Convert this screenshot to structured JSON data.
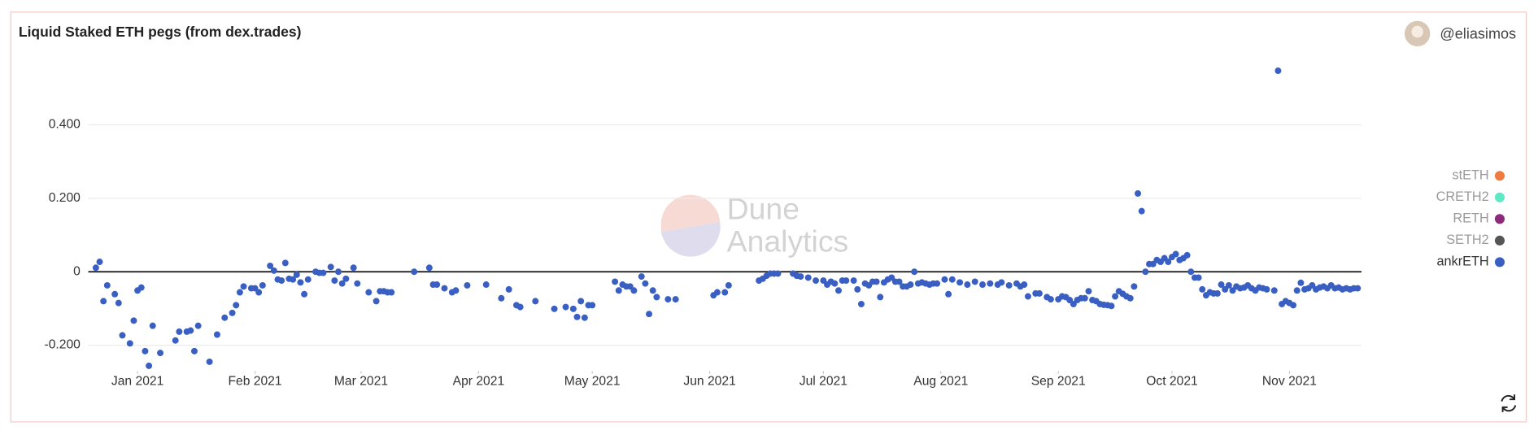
{
  "chart_data": {
    "type": "scatter",
    "title": "Liquid Staked ETH pegs (from dex.trades)",
    "user": "@eliasimos",
    "watermark": [
      "Dune",
      "Analytics"
    ],
    "xlim": [
      "2020-12-19",
      "2021-11-20"
    ],
    "ylim": [
      -0.27,
      0.6
    ],
    "xticks": [
      {
        "value": "2021-01-01",
        "label": "Jan 2021"
      },
      {
        "value": "2021-02-01",
        "label": "Feb 2021"
      },
      {
        "value": "2021-03-01",
        "label": "Mar 2021"
      },
      {
        "value": "2021-04-01",
        "label": "Apr 2021"
      },
      {
        "value": "2021-05-01",
        "label": "May 2021"
      },
      {
        "value": "2021-06-01",
        "label": "Jun 2021"
      },
      {
        "value": "2021-07-01",
        "label": "Jul 2021"
      },
      {
        "value": "2021-08-01",
        "label": "Aug 2021"
      },
      {
        "value": "2021-09-01",
        "label": "Sep 2021"
      },
      {
        "value": "2021-10-01",
        "label": "Oct 2021"
      },
      {
        "value": "2021-11-01",
        "label": "Nov 2021"
      }
    ],
    "yticks": [
      {
        "value": -0.2,
        "label": "-0.200"
      },
      0,
      {
        "value": 0.2,
        "label": "0.200"
      },
      {
        "value": 0.4,
        "label": "0.400"
      }
    ],
    "grid": true,
    "legend_position": "right",
    "hidden_series": [
      {
        "name": "stETH",
        "color": "#f07b3f"
      },
      {
        "name": "CRETH2",
        "color": "#5ee8c5"
      },
      {
        "name": "RETH",
        "color": "#8e2a7a"
      },
      {
        "name": "SETH2",
        "color": "#555555"
      }
    ],
    "x": [
      "2020-12-21",
      "2020-12-22",
      "2020-12-23",
      "2020-12-24",
      "2020-12-26",
      "2020-12-27",
      "2020-12-28",
      "2020-12-30",
      "2020-12-31",
      "2021-01-01",
      "2021-01-02",
      "2021-01-03",
      "2021-01-04",
      "2021-01-05",
      "2021-01-07",
      "2021-01-11",
      "2021-01-12",
      "2021-01-14",
      "2021-01-15",
      "2021-01-16",
      "2021-01-17",
      "2021-01-20",
      "2021-01-22",
      "2021-01-24",
      "2021-01-26",
      "2021-01-27",
      "2021-01-28",
      "2021-01-29",
      "2021-01-31",
      "2021-02-01",
      "2021-02-02",
      "2021-02-03",
      "2021-02-05",
      "2021-02-06",
      "2021-02-07",
      "2021-02-08",
      "2021-02-09",
      "2021-02-10",
      "2021-02-11",
      "2021-02-12",
      "2021-02-13",
      "2021-02-14",
      "2021-02-15",
      "2021-02-17",
      "2021-02-18",
      "2021-02-19",
      "2021-02-21",
      "2021-02-22",
      "2021-02-23",
      "2021-02-24",
      "2021-02-25",
      "2021-02-27",
      "2021-02-28",
      "2021-03-03",
      "2021-03-05",
      "2021-03-06",
      "2021-03-07",
      "2021-03-08",
      "2021-03-09",
      "2021-03-15",
      "2021-03-19",
      "2021-03-20",
      "2021-03-21",
      "2021-03-23",
      "2021-03-25",
      "2021-03-26",
      "2021-03-29",
      "2021-04-03",
      "2021-04-07",
      "2021-04-09",
      "2021-04-11",
      "2021-04-12",
      "2021-04-16",
      "2021-04-21",
      "2021-04-24",
      "2021-04-26",
      "2021-04-27",
      "2021-04-28",
      "2021-04-29",
      "2021-04-30",
      "2021-05-01",
      "2021-05-07",
      "2021-05-08",
      "2021-05-09",
      "2021-05-10",
      "2021-05-11",
      "2021-05-12",
      "2021-05-14",
      "2021-05-15",
      "2021-05-16",
      "2021-05-17",
      "2021-05-18",
      "2021-05-21",
      "2021-05-23",
      "2021-06-02",
      "2021-06-03",
      "2021-06-05",
      "2021-06-06",
      "2021-06-14",
      "2021-06-15",
      "2021-06-16",
      "2021-06-17",
      "2021-06-18",
      "2021-06-19",
      "2021-06-23",
      "2021-06-24",
      "2021-06-25",
      "2021-06-27",
      "2021-06-29",
      "2021-07-01",
      "2021-07-02",
      "2021-07-03",
      "2021-07-04",
      "2021-07-05",
      "2021-07-06",
      "2021-07-07",
      "2021-07-09",
      "2021-07-10",
      "2021-07-11",
      "2021-07-12",
      "2021-07-13",
      "2021-07-14",
      "2021-07-15",
      "2021-07-16",
      "2021-07-17",
      "2021-07-18",
      "2021-07-19",
      "2021-07-20",
      "2021-07-21",
      "2021-07-22",
      "2021-07-23",
      "2021-07-24",
      "2021-07-25",
      "2021-07-26",
      "2021-07-27",
      "2021-07-28",
      "2021-07-29",
      "2021-07-30",
      "2021-07-31",
      "2021-08-02",
      "2021-08-03",
      "2021-08-04",
      "2021-08-06",
      "2021-08-08",
      "2021-08-10",
      "2021-08-12",
      "2021-08-14",
      "2021-08-16",
      "2021-08-17",
      "2021-08-19",
      "2021-08-21",
      "2021-08-22",
      "2021-08-23",
      "2021-08-24",
      "2021-08-26",
      "2021-08-27",
      "2021-08-29",
      "2021-08-30",
      "2021-09-01",
      "2021-09-02",
      "2021-09-03",
      "2021-09-04",
      "2021-09-05",
      "2021-09-06",
      "2021-09-07",
      "2021-09-08",
      "2021-09-09",
      "2021-09-10",
      "2021-09-11",
      "2021-09-12",
      "2021-09-13",
      "2021-09-14",
      "2021-09-15",
      "2021-09-16",
      "2021-09-17",
      "2021-09-18",
      "2021-09-19",
      "2021-09-20",
      "2021-09-21",
      "2021-09-22",
      "2021-09-23",
      "2021-09-24",
      "2021-09-25",
      "2021-09-26",
      "2021-09-27",
      "2021-09-28",
      "2021-09-29",
      "2021-09-30",
      "2021-10-01",
      "2021-10-02",
      "2021-10-03",
      "2021-10-04",
      "2021-10-05",
      "2021-10-06",
      "2021-10-07",
      "2021-10-08",
      "2021-10-09",
      "2021-10-10",
      "2021-10-11",
      "2021-10-12",
      "2021-10-13",
      "2021-10-14",
      "2021-10-15",
      "2021-10-16",
      "2021-10-17",
      "2021-10-18",
      "2021-10-19",
      "2021-10-20",
      "2021-10-21",
      "2021-10-22",
      "2021-10-23",
      "2021-10-24",
      "2021-10-25",
      "2021-10-26",
      "2021-10-28",
      "2021-10-29",
      "2021-10-30",
      "2021-10-31",
      "2021-11-01",
      "2021-11-02",
      "2021-11-03",
      "2021-11-04",
      "2021-11-05",
      "2021-11-06",
      "2021-11-07",
      "2021-11-08",
      "2021-11-09",
      "2021-11-10",
      "2021-11-11",
      "2021-11-12",
      "2021-11-13",
      "2021-11-14",
      "2021-11-15",
      "2021-11-16",
      "2021-11-17",
      "2021-11-18",
      "2021-11-19"
    ],
    "series": [
      {
        "name": "ankrETH",
        "color": "#3a5fc2",
        "values": [
          0.011,
          0.027,
          -0.08,
          -0.037,
          -0.061,
          -0.085,
          -0.173,
          -0.195,
          -0.133,
          -0.051,
          -0.043,
          -0.216,
          -0.256,
          -0.147,
          -0.221,
          -0.187,
          -0.163,
          -0.163,
          -0.16,
          -0.216,
          -0.147,
          -0.245,
          -0.171,
          -0.125,
          -0.112,
          -0.091,
          -0.056,
          -0.04,
          -0.045,
          -0.045,
          -0.056,
          -0.037,
          0.016,
          0.003,
          -0.021,
          -0.024,
          0.024,
          -0.019,
          -0.021,
          -0.008,
          -0.029,
          -0.061,
          -0.021,
          0.0,
          -0.003,
          -0.003,
          0.013,
          -0.024,
          0.0,
          -0.032,
          -0.019,
          0.011,
          -0.032,
          -0.056,
          -0.08,
          -0.053,
          -0.053,
          -0.056,
          -0.056,
          0.0,
          0.011,
          -0.035,
          -0.035,
          -0.045,
          -0.056,
          -0.051,
          -0.037,
          -0.035,
          -0.072,
          -0.048,
          -0.091,
          -0.096,
          -0.08,
          -0.101,
          -0.096,
          -0.101,
          -0.123,
          -0.08,
          -0.125,
          -0.091,
          -0.091,
          -0.027,
          -0.051,
          -0.035,
          -0.04,
          -0.04,
          -0.051,
          -0.013,
          -0.032,
          -0.115,
          -0.051,
          -0.069,
          -0.075,
          -0.075,
          -0.064,
          -0.056,
          -0.056,
          -0.037,
          -0.024,
          -0.019,
          -0.011,
          -0.005,
          -0.005,
          -0.005,
          -0.005,
          -0.011,
          -0.013,
          -0.016,
          -0.024,
          -0.024,
          -0.035,
          -0.027,
          -0.032,
          -0.051,
          -0.024,
          -0.024,
          -0.024,
          -0.048,
          -0.088,
          -0.032,
          -0.037,
          -0.027,
          -0.027,
          -0.069,
          -0.029,
          -0.021,
          -0.016,
          -0.027,
          -0.027,
          -0.04,
          -0.04,
          -0.035,
          0.0,
          -0.032,
          -0.029,
          -0.032,
          -0.035,
          -0.032,
          -0.032,
          -0.021,
          -0.061,
          -0.021,
          -0.029,
          -0.035,
          -0.027,
          -0.035,
          -0.032,
          -0.035,
          -0.029,
          -0.037,
          -0.032,
          -0.04,
          -0.035,
          -0.067,
          -0.059,
          -0.059,
          -0.069,
          -0.075,
          -0.075,
          -0.067,
          -0.069,
          -0.077,
          -0.088,
          -0.077,
          -0.072,
          -0.072,
          -0.053,
          -0.077,
          -0.08,
          -0.088,
          -0.09,
          -0.091,
          -0.093,
          -0.067,
          -0.053,
          -0.06,
          -0.067,
          -0.072,
          -0.04,
          0.213,
          0.165,
          0.0,
          0.021,
          0.021,
          0.032,
          0.027,
          0.037,
          0.027,
          0.04,
          0.048,
          0.032,
          0.037,
          0.045,
          0.0,
          -0.016,
          -0.016,
          -0.048,
          -0.064,
          -0.056,
          -0.059,
          -0.059,
          -0.035,
          -0.048,
          -0.037,
          -0.051,
          -0.04,
          -0.045,
          -0.043,
          -0.037,
          -0.045,
          -0.051,
          -0.043,
          -0.045,
          -0.048,
          -0.051,
          0.547,
          -0.088,
          -0.08,
          -0.085,
          -0.091,
          -0.051,
          -0.03,
          -0.048,
          -0.045,
          -0.037,
          -0.048,
          -0.043,
          -0.04,
          -0.045,
          -0.037,
          -0.045,
          -0.043,
          -0.048,
          -0.045,
          -0.048,
          -0.045,
          -0.045
        ]
      }
    ]
  }
}
